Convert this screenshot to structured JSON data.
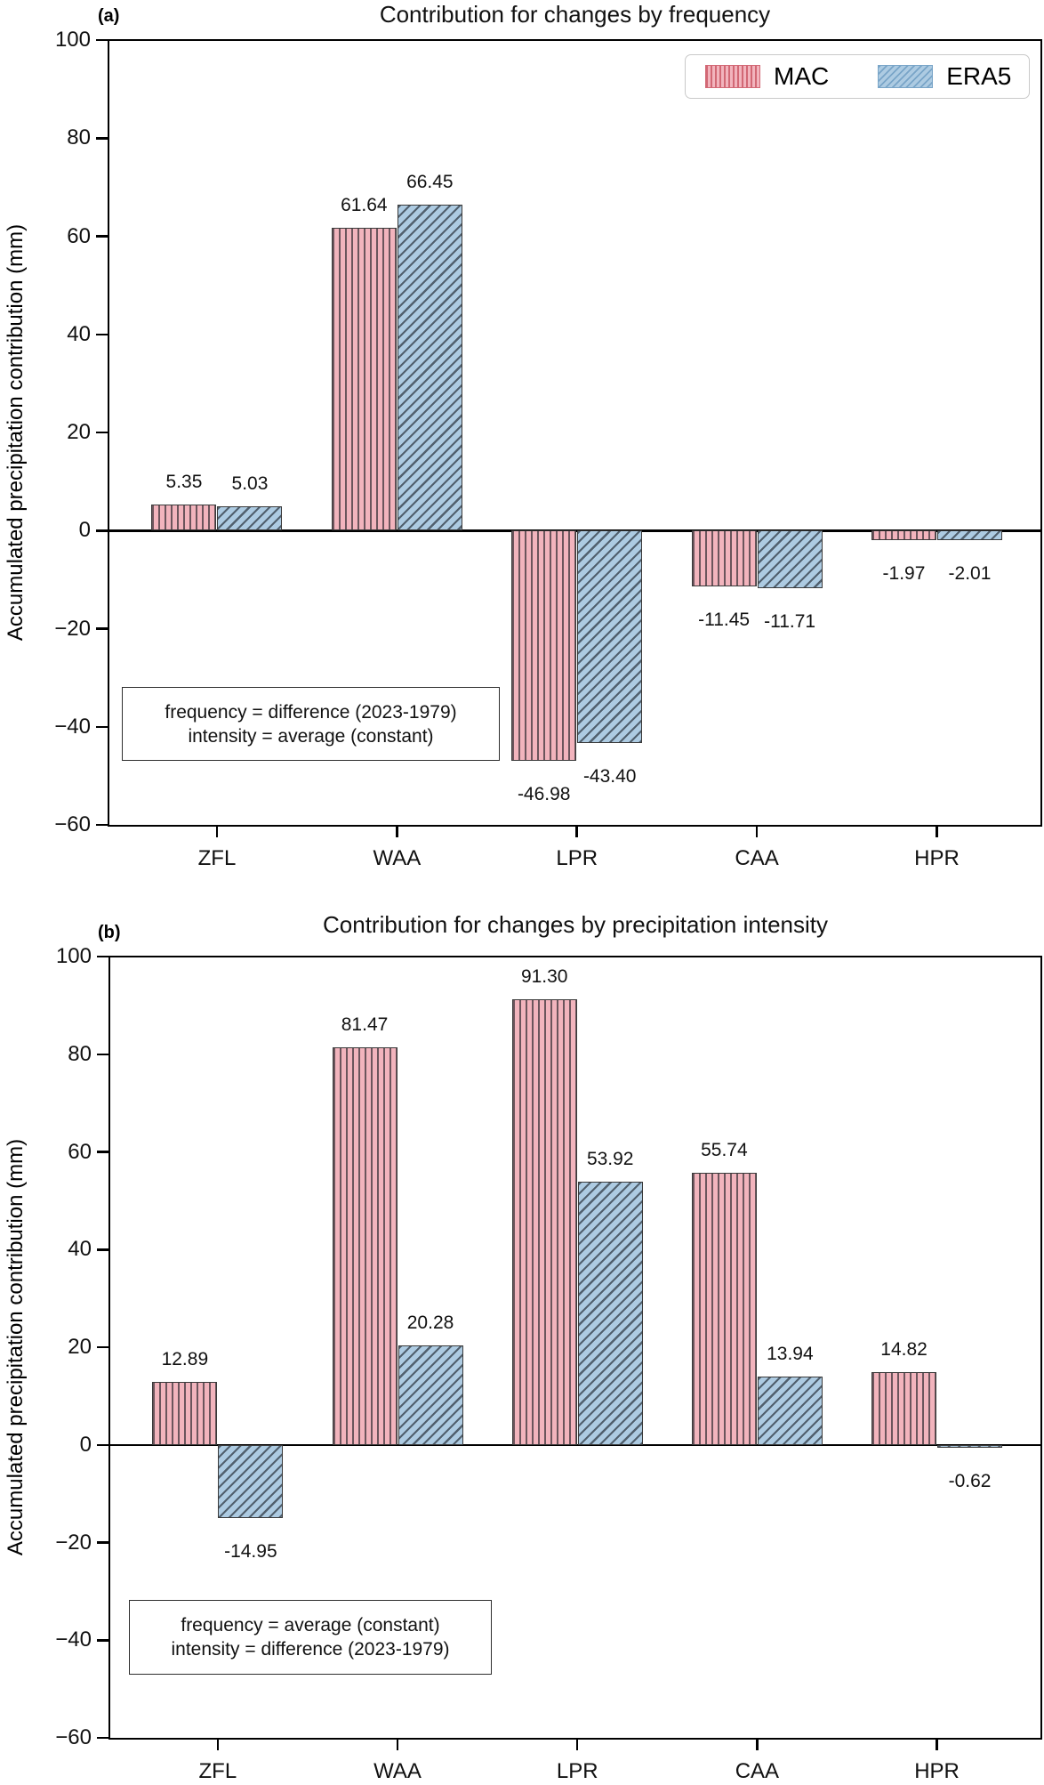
{
  "style": {
    "mac_fill": "#f2b4bd",
    "mac_hatch": "#6b555c",
    "era5_fill": "#adcbe2",
    "era5_hatch": "#51606e",
    "bar_edge": "#3a3a3a",
    "mac_legend_hatch": "#d26875",
    "era5_legend_hatch": "#79a5c8"
  },
  "chart_data": [
    {
      "type": "bar",
      "panel_label": "(a)",
      "title": "Contribution for changes by frequency",
      "xlabel": "",
      "ylabel": "Accumulated precipitation contribution (mm)",
      "categories": [
        "ZFL",
        "WAA",
        "LPR",
        "CAA",
        "HPR"
      ],
      "series": [
        {
          "name": "MAC",
          "values": [
            5.35,
            61.64,
            -46.98,
            -11.45,
            -1.97
          ]
        },
        {
          "name": "ERA5",
          "values": [
            5.03,
            66.45,
            -43.4,
            -11.71,
            -2.01
          ]
        }
      ],
      "value_labels": [
        [
          "5.35",
          "61.64",
          "-46.98",
          "-11.45",
          "-1.97"
        ],
        [
          "5.03",
          "66.45",
          "-43.40",
          "-11.71",
          "-2.01"
        ]
      ],
      "ylim": [
        -60,
        100
      ],
      "ytick_values": [
        100,
        80,
        60,
        40,
        20,
        0,
        -20,
        -40,
        -60
      ],
      "ytick_labels": [
        "100",
        "80",
        "60",
        "40",
        "20",
        "0",
        "−20",
        "−40",
        "−60"
      ],
      "grid": false,
      "legend": {
        "position": "upper right",
        "entries": [
          "MAC",
          "ERA5"
        ]
      },
      "annotation_lines": [
        "frequency = difference (2023-1979)",
        "intensity = average (constant)"
      ]
    },
    {
      "type": "bar",
      "panel_label": "(b)",
      "title": "Contribution for changes by precipitation intensity",
      "xlabel": "",
      "ylabel": "Accumulated precipitation contribution (mm)",
      "categories": [
        "ZFL",
        "WAA",
        "LPR",
        "CAA",
        "HPR"
      ],
      "series": [
        {
          "name": "MAC",
          "values": [
            12.89,
            81.47,
            91.3,
            55.74,
            14.82
          ]
        },
        {
          "name": "ERA5",
          "values": [
            -14.95,
            20.28,
            53.92,
            13.94,
            -0.62
          ]
        }
      ],
      "value_labels": [
        [
          "12.89",
          "81.47",
          "91.30",
          "55.74",
          "14.82"
        ],
        [
          "-14.95",
          "20.28",
          "53.92",
          "13.94",
          "-0.62"
        ]
      ],
      "ylim": [
        -60,
        100
      ],
      "ytick_values": [
        100,
        80,
        60,
        40,
        20,
        0,
        -20,
        -40,
        -60
      ],
      "ytick_labels": [
        "100",
        "80",
        "60",
        "40",
        "20",
        "0",
        "−20",
        "−40",
        "−60"
      ],
      "grid": false,
      "legend": null,
      "annotation_lines": [
        "frequency = average (constant)",
        "intensity = difference (2023-1979)"
      ]
    }
  ]
}
